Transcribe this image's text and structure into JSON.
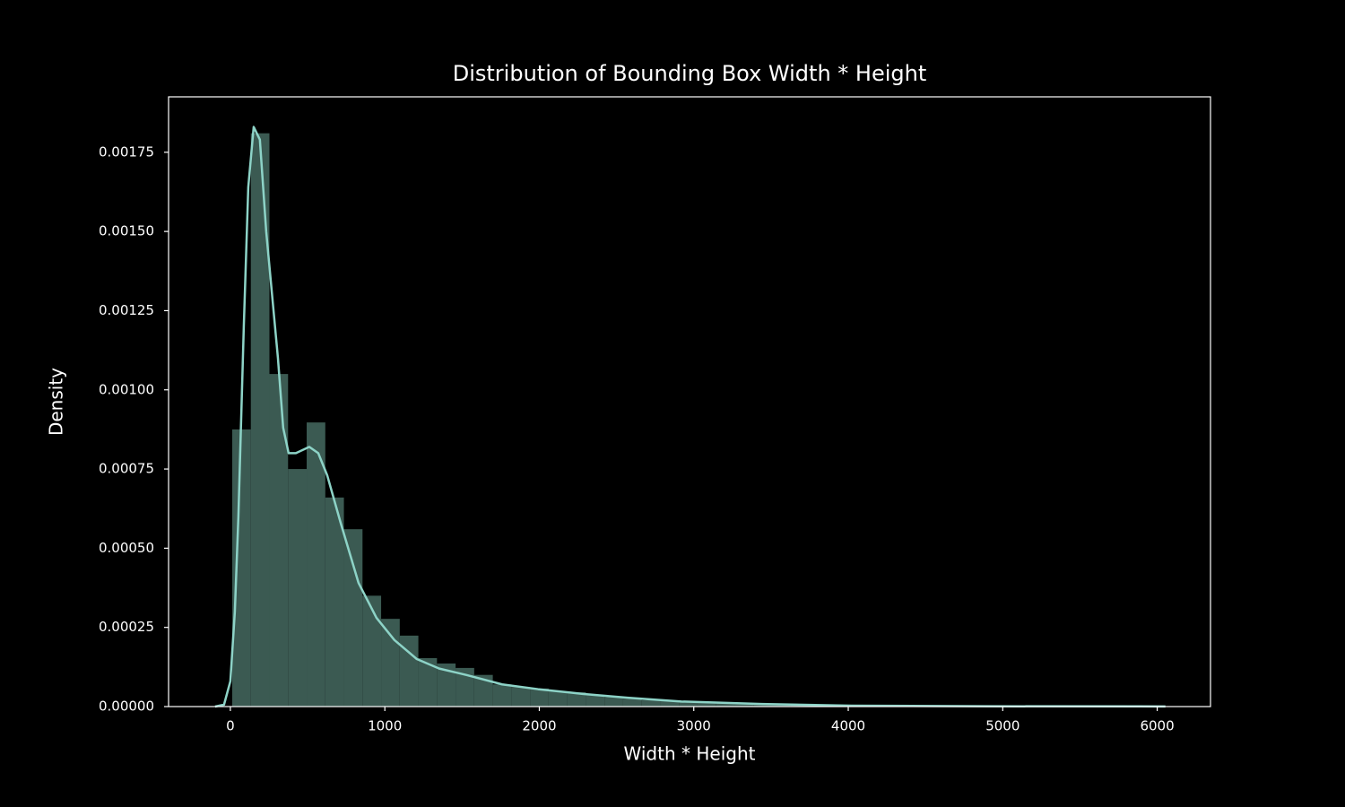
{
  "chart_data": {
    "type": "histogram",
    "title": "Distribution of Bounding Box Width * Height",
    "xlabel": "Width * Height",
    "ylabel": "Density",
    "bins": [
      12,
      132.5,
      253,
      373.5,
      494,
      614.5,
      735,
      855.5,
      976,
      1096.5,
      1217,
      1337.5,
      1458,
      1578.5,
      1699,
      1819.5,
      1940,
      2060.5,
      2181,
      2301.5,
      2422,
      2542.5,
      2663,
      2783.5,
      2904,
      3024.5,
      3145,
      3265.5,
      3386,
      3506.5,
      3627,
      3747.5,
      3868,
      3988.5,
      4109,
      4229.5,
      4350,
      4470.5,
      4591,
      4711.5,
      4832,
      4952.5,
      5073,
      5193.5,
      5314,
      5434.5,
      5555,
      5675.5,
      5796,
      5916.5,
      6037
    ],
    "counts": [
      0.000875,
      0.00181,
      0.00105,
      0.00075,
      0.000897,
      0.00066,
      0.00056,
      0.00035,
      0.000277,
      0.000224,
      0.000153,
      0.000136,
      0.000122,
      0.0001,
      7e-05,
      6.2e-05,
      5.7e-05,
      4.8e-05,
      4.5e-05,
      3.7e-05,
      3e-05,
      2.5e-05,
      2e-05,
      1.7e-05,
      1.4e-05,
      1.3e-05,
      1.1e-05,
      1e-05,
      8e-06,
      5e-06,
      4e-06,
      3e-06,
      3e-06,
      2e-06,
      2e-06,
      2e-06,
      1e-06,
      1e-06,
      1e-06,
      1e-06,
      1e-06,
      1e-06,
      1e-06,
      1e-06,
      5e-07,
      5e-07,
      5e-07,
      5e-07,
      5e-07,
      5e-07
    ],
    "color": "#3b5a52",
    "kde": {
      "color": "#8dd3c7",
      "x": [
        -99,
        -41,
        0,
        29,
        52,
        87,
        116,
        151,
        191,
        232,
        308,
        342,
        377,
        424,
        511,
        569,
        627,
        714,
        830,
        946,
        1062,
        1207,
        1352,
        1526,
        1759,
        1991,
        2281,
        2571,
        2919,
        3441,
        4022,
        4893,
        6053
      ],
      "values": [
        0,
        6e-06,
        8e-05,
        0.0003,
        0.0006,
        0.0012,
        0.00164,
        0.00183,
        0.00179,
        0.0015,
        0.0011,
        0.00088,
        0.0008,
        0.0008,
        0.00082,
        0.0008,
        0.00073,
        0.00058,
        0.00039,
        0.00028,
        0.00021,
        0.00015,
        0.00012,
        0.0001,
        7e-05,
        5.5e-05,
        4e-05,
        2.8e-05,
        1.6e-05,
        8e-06,
        3e-06,
        1e-06,
        5e-07
      ]
    },
    "xlim": [
      -400,
      6345
    ],
    "ylim": [
      0,
      0.001925
    ],
    "xticks": [
      0,
      1000,
      2000,
      3000,
      4000,
      5000,
      6000
    ],
    "yticks": [
      {
        "value": 0,
        "label": "0.00000"
      },
      {
        "value": 0.00025,
        "label": "0.00025"
      },
      {
        "value": 0.0005,
        "label": "0.00050"
      },
      {
        "value": 0.00075,
        "label": "0.00075"
      },
      {
        "value": 0.001,
        "label": "0.00100"
      },
      {
        "value": 0.00125,
        "label": "0.00125"
      },
      {
        "value": 0.0015,
        "label": "0.00150"
      },
      {
        "value": 0.00175,
        "label": "0.00175"
      }
    ]
  }
}
